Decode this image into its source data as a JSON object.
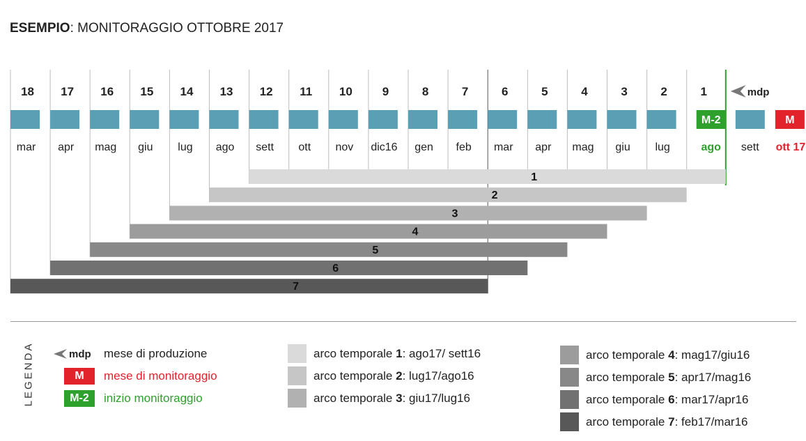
{
  "title": {
    "bold": "ESEMPIO",
    "rest": ": MONITORAGGIO OTTOBRE 2017"
  },
  "timeline": {
    "columns": [
      {
        "num": "18",
        "month": "mar"
      },
      {
        "num": "17",
        "month": "apr"
      },
      {
        "num": "16",
        "month": "mag"
      },
      {
        "num": "15",
        "month": "giu"
      },
      {
        "num": "14",
        "month": "lug"
      },
      {
        "num": "13",
        "month": "ago"
      },
      {
        "num": "12",
        "month": "sett"
      },
      {
        "num": "11",
        "month": "ott"
      },
      {
        "num": "10",
        "month": "nov"
      },
      {
        "num": "9",
        "month": "dic16"
      },
      {
        "num": "8",
        "month": "gen"
      },
      {
        "num": "7",
        "month": "feb"
      },
      {
        "num": "6",
        "month": "mar"
      },
      {
        "num": "5",
        "month": "apr"
      },
      {
        "num": "4",
        "month": "mag"
      },
      {
        "num": "3",
        "month": "giu"
      },
      {
        "num": "2",
        "month": "lug"
      },
      {
        "num": "1",
        "month": "ago",
        "badge": "M-2"
      },
      {
        "num": "",
        "month": "sett",
        "mdp": "mdp"
      },
      {
        "num": "",
        "month": "ott 17",
        "badge": "M"
      }
    ],
    "bars": [
      {
        "label": "1",
        "start_col": 6,
        "end_col": 17,
        "color": "#dadada"
      },
      {
        "label": "2",
        "start_col": 5,
        "end_col": 16,
        "color": "#c6c6c6"
      },
      {
        "label": "3",
        "start_col": 4,
        "end_col": 15,
        "color": "#b1b1b1"
      },
      {
        "label": "4",
        "start_col": 3,
        "end_col": 14,
        "color": "#9c9c9c"
      },
      {
        "label": "5",
        "start_col": 2,
        "end_col": 13,
        "color": "#888888"
      },
      {
        "label": "6",
        "start_col": 1,
        "end_col": 12,
        "color": "#717171"
      },
      {
        "label": "7",
        "start_col": 0,
        "end_col": 11,
        "color": "#585858"
      }
    ],
    "colors": {
      "month_block": "#5b9fb5",
      "monitor_red": "#e2232b",
      "start_green": "#2ea02c",
      "divider_line": "#555555"
    }
  },
  "legend": {
    "heading": "LEGENDA",
    "mdp_symbol": "mdp",
    "mdp_text": "mese di produzione",
    "m_symbol": "M",
    "m_text": "mese di monitoraggio",
    "m2_symbol": "M-2",
    "m2_text": "inizio monitoraggio",
    "arcs": [
      {
        "prefix": "arco temporale ",
        "num": "1",
        "range": ": ago17/ sett16",
        "color": "#dadada"
      },
      {
        "prefix": "arco temporale ",
        "num": "2",
        "range": ": lug17/ago16",
        "color": "#c6c6c6"
      },
      {
        "prefix": "arco temporale ",
        "num": "3",
        "range": ": giu17/lug16",
        "color": "#b1b1b1"
      },
      {
        "prefix": "arco temporale ",
        "num": "4",
        "range": ": mag17/giu16",
        "color": "#9c9c9c"
      },
      {
        "prefix": "arco temporale ",
        "num": "5",
        "range": ": apr17/mag16",
        "color": "#888888"
      },
      {
        "prefix": "arco temporale ",
        "num": "6",
        "range": ": mar17/apr16",
        "color": "#717171"
      },
      {
        "prefix": "arco temporale ",
        "num": "7",
        "range": ": feb17/mar16",
        "color": "#585858"
      }
    ]
  }
}
